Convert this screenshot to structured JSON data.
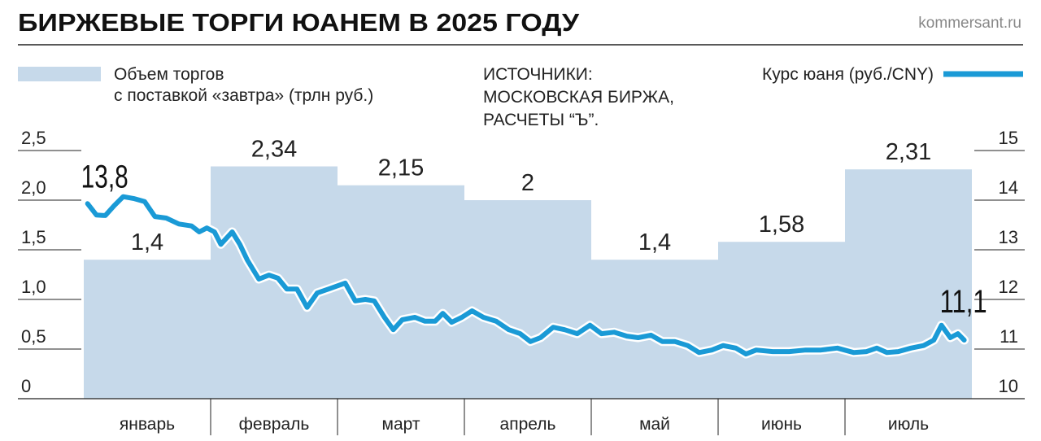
{
  "header": {
    "title": "БИРЖЕВЫЕ ТОРГИ ЮАНЕМ В 2025 ГОДУ",
    "site": "kommersant.ru"
  },
  "legend": {
    "volume_line1": "Объем торгов",
    "volume_line2": "с поставкой «завтра» (трлн руб.)",
    "source_line1": "ИСТОЧНИКИ:",
    "source_line2": "МОСКОВСКАЯ БИРЖА,",
    "source_line3": "РАСЧЕТЫ “Ъ”.",
    "rate": "Курс юаня (руб./CNY)"
  },
  "colors": {
    "bar": "#c6d9ea",
    "line": "#1a9ad6",
    "axis": "#222222"
  },
  "chart_data": {
    "type": "bar+line",
    "title": "БИРЖЕВЫЕ ТОРГИ ЮАНЕМ В 2025 ГОДУ",
    "categories": [
      "январь",
      "февраль",
      "март",
      "апрель",
      "май",
      "июнь",
      "июль"
    ],
    "bars": {
      "name": "Объем торгов с поставкой «завтра» (трлн руб.)",
      "values": [
        1.4,
        2.34,
        2.15,
        2,
        1.4,
        1.58,
        2.31
      ],
      "labels": [
        "1,4",
        "2,34",
        "2,15",
        "2",
        "1,4",
        "1,58",
        "2,31"
      ]
    },
    "left_axis": {
      "ylim": [
        0,
        2.5
      ],
      "ticks": [
        "0",
        "0,5",
        "1,0",
        "1,5",
        "2,0",
        "2,5"
      ]
    },
    "right_axis": {
      "ylim": [
        10,
        15
      ],
      "ticks": [
        "10",
        "11",
        "12",
        "13",
        "14",
        "15"
      ]
    },
    "line": {
      "name": "Курс юаня (руб./CNY)",
      "t_months": [
        0.03,
        0.1,
        0.17,
        0.24,
        0.31,
        0.4,
        0.48,
        0.56,
        0.65,
        0.75,
        0.85,
        0.91,
        0.97,
        1.03,
        1.08,
        1.17,
        1.23,
        1.29,
        1.38,
        1.46,
        1.53,
        1.6,
        1.68,
        1.76,
        1.84,
        1.93,
        2.06,
        2.14,
        2.22,
        2.29,
        2.37,
        2.44,
        2.51,
        2.61,
        2.69,
        2.77,
        2.83,
        2.9,
        2.98,
        3.06,
        3.15,
        3.25,
        3.35,
        3.44,
        3.52,
        3.6,
        3.7,
        3.79,
        3.89,
        3.99,
        4.08,
        4.18,
        4.28,
        4.37,
        4.47,
        4.56,
        4.66,
        4.76,
        4.85,
        4.95,
        5.04,
        5.14,
        5.22,
        5.3,
        5.43,
        5.56,
        5.69,
        5.81,
        5.94,
        6.07,
        6.17,
        6.25,
        6.33,
        6.42,
        6.52,
        6.62,
        6.7,
        6.76,
        6.83,
        6.89,
        6.94
      ],
      "values": [
        13.93,
        13.7,
        13.69,
        13.89,
        14.07,
        14.03,
        13.97,
        13.67,
        13.64,
        13.52,
        13.48,
        13.36,
        13.44,
        13.36,
        13.11,
        13.36,
        13.11,
        12.79,
        12.41,
        12.49,
        12.43,
        12.21,
        12.21,
        11.84,
        12.13,
        12.21,
        12.33,
        11.97,
        12.0,
        11.97,
        11.64,
        11.39,
        11.59,
        11.64,
        11.56,
        11.56,
        11.72,
        11.54,
        11.64,
        11.77,
        11.64,
        11.56,
        11.39,
        11.31,
        11.15,
        11.23,
        11.44,
        11.39,
        11.31,
        11.48,
        11.31,
        11.34,
        11.26,
        11.23,
        11.28,
        11.15,
        11.15,
        11.07,
        10.93,
        10.98,
        11.07,
        11.02,
        10.9,
        10.98,
        10.95,
        10.95,
        10.98,
        10.98,
        11.02,
        10.93,
        10.95,
        11.02,
        10.93,
        10.95,
        11.02,
        11.07,
        11.18,
        11.48,
        11.23,
        11.31,
        11.18
      ],
      "annotations": [
        {
          "label": "13,8",
          "t": 0.03
        },
        {
          "label": "11,1",
          "t": 6.94
        }
      ]
    }
  }
}
